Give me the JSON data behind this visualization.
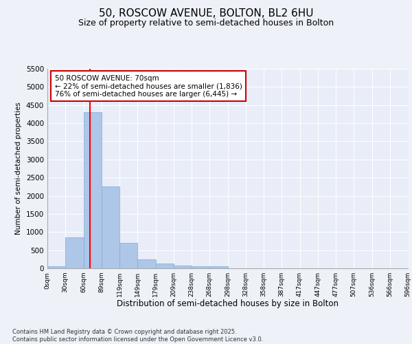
{
  "title": "50, ROSCOW AVENUE, BOLTON, BL2 6HU",
  "subtitle": "Size of property relative to semi-detached houses in Bolton",
  "xlabel": "Distribution of semi-detached houses by size in Bolton",
  "ylabel": "Number of semi-detached properties",
  "bar_values": [
    50,
    850,
    4300,
    2250,
    700,
    250,
    130,
    80,
    60,
    50,
    0,
    0,
    0,
    0,
    0,
    0,
    0,
    0,
    0,
    0
  ],
  "bin_labels": [
    "0sqm",
    "30sqm",
    "60sqm",
    "89sqm",
    "119sqm",
    "149sqm",
    "179sqm",
    "209sqm",
    "238sqm",
    "268sqm",
    "298sqm",
    "328sqm",
    "358sqm",
    "387sqm",
    "417sqm",
    "447sqm",
    "477sqm",
    "507sqm",
    "536sqm",
    "566sqm",
    "596sqm"
  ],
  "bar_color": "#aec6e8",
  "bar_edge_color": "#7aafd4",
  "background_color": "#e8edf8",
  "grid_color": "#ffffff",
  "annotation_text": "50 ROSCOW AVENUE: 70sqm\n← 22% of semi-detached houses are smaller (1,836)\n76% of semi-detached houses are larger (6,445) →",
  "annotation_box_color": "#cc0000",
  "ylim": [
    0,
    5500
  ],
  "yticks": [
    0,
    500,
    1000,
    1500,
    2000,
    2500,
    3000,
    3500,
    4000,
    4500,
    5000,
    5500
  ],
  "footer_line1": "Contains HM Land Registry data © Crown copyright and database right 2025.",
  "footer_line2": "Contains public sector information licensed under the Open Government Licence v3.0.",
  "title_fontsize": 11,
  "subtitle_fontsize": 9,
  "fig_background": "#eef1f8"
}
